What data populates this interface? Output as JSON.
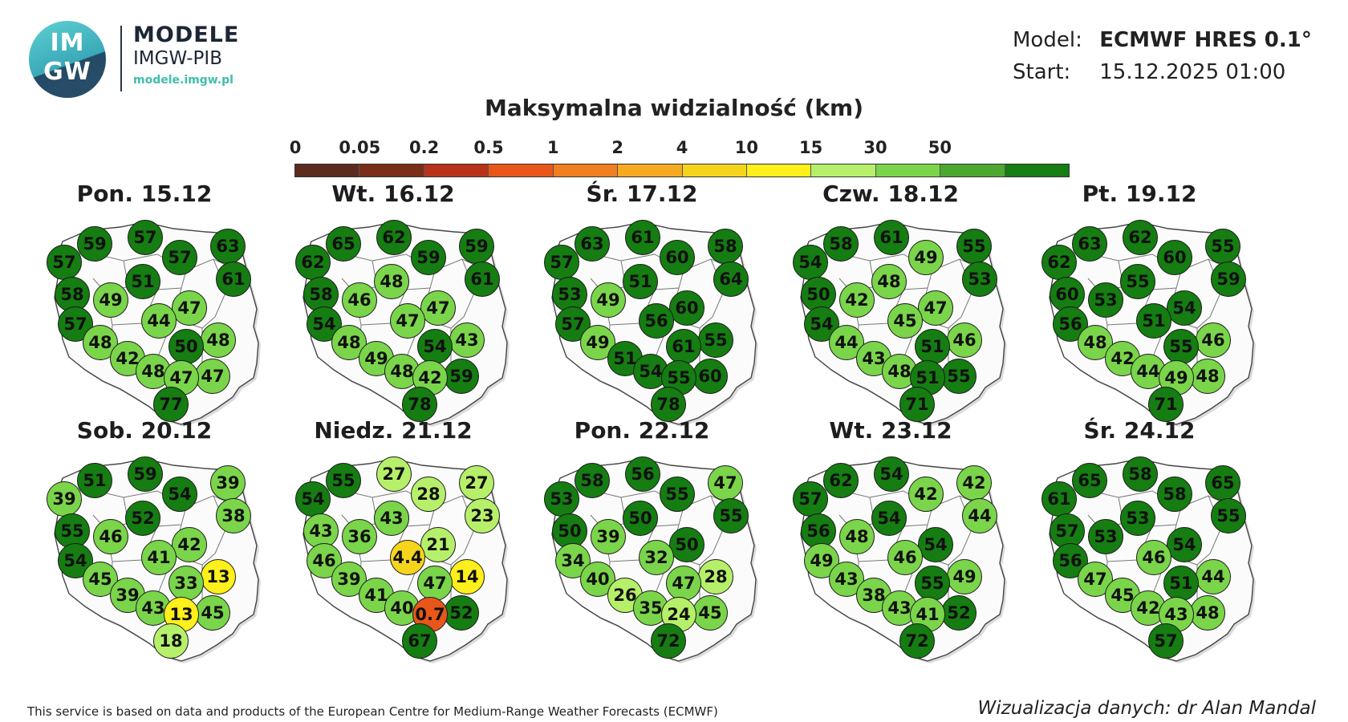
{
  "brand": {
    "logo_top": "IM",
    "logo_bottom": "GW",
    "name": "MODELE",
    "org": "IMGW-PIB",
    "url": "modele.imgw.pl"
  },
  "info": {
    "model_label": "Model:",
    "model_value": "ECMWF HRES 0.1°",
    "start_label": "Start:",
    "start_value": "15.12.2025 01:00"
  },
  "title": "Maksymalna widzialność (km)",
  "legend": {
    "ticks": [
      "0",
      "0.05",
      "0.2",
      "0.5",
      "1",
      "2",
      "4",
      "10",
      "15",
      "30",
      "50"
    ],
    "colors": [
      "#5b2b1f",
      "#7a2e18",
      "#b8321a",
      "#e8561a",
      "#f07f1f",
      "#f5aa22",
      "#f5d51c",
      "#ffef1a",
      "#b6f06a",
      "#7ad54a",
      "#4ca82e",
      "#157d12"
    ]
  },
  "footer": {
    "left": "This service is based on data and products of the European Centre for Medium-Range Weather Forecasts (ECMWF)",
    "right": "Wizualizacja danych: dr Alan Mandal"
  },
  "days": [
    {
      "label": "Pon. 15.12",
      "values": [
        "59",
        "57",
        "63",
        "57",
        "57",
        "61",
        "51",
        "58",
        "49",
        "47",
        "57",
        "44",
        "48",
        "48",
        "50",
        "42",
        "47",
        "48",
        "47",
        "77"
      ]
    },
    {
      "label": "Wt. 16.12",
      "values": [
        "65",
        "62",
        "59",
        "62",
        "59",
        "61",
        "48",
        "58",
        "46",
        "47",
        "54",
        "47",
        "48",
        "43",
        "54",
        "49",
        "59",
        "48",
        "42",
        "78"
      ]
    },
    {
      "label": "Śr. 17.12",
      "values": [
        "63",
        "61",
        "58",
        "57",
        "60",
        "64",
        "51",
        "53",
        "49",
        "60",
        "57",
        "56",
        "49",
        "55",
        "61",
        "51",
        "60",
        "54",
        "55",
        "78"
      ]
    },
    {
      "label": "Czw. 18.12",
      "values": [
        "58",
        "61",
        "55",
        "54",
        "49",
        "53",
        "48",
        "50",
        "42",
        "47",
        "54",
        "45",
        "44",
        "46",
        "51",
        "43",
        "55",
        "48",
        "51",
        "71"
      ]
    },
    {
      "label": "Pt. 19.12",
      "values": [
        "63",
        "62",
        "55",
        "62",
        "60",
        "59",
        "55",
        "60",
        "53",
        "54",
        "56",
        "51",
        "48",
        "46",
        "55",
        "42",
        "48",
        "44",
        "49",
        "71"
      ]
    },
    {
      "label": "Sob. 20.12",
      "values": [
        "51",
        "59",
        "39",
        "39",
        "54",
        "38",
        "52",
        "55",
        "46",
        "42",
        "54",
        "41",
        "45",
        "13",
        "33",
        "39",
        "45",
        "43",
        "13",
        "18"
      ]
    },
    {
      "label": "Niedz. 21.12",
      "values": [
        "55",
        "27",
        "27",
        "54",
        "28",
        "23",
        "43",
        "43",
        "36",
        "21",
        "46",
        "4.4",
        "39",
        "14",
        "47",
        "41",
        "52",
        "40",
        "0.7",
        "67"
      ]
    },
    {
      "label": "Pon. 22.12",
      "values": [
        "58",
        "56",
        "47",
        "53",
        "55",
        "55",
        "50",
        "50",
        "39",
        "50",
        "34",
        "32",
        "40",
        "28",
        "47",
        "26",
        "45",
        "35",
        "24",
        "72"
      ]
    },
    {
      "label": "Wt. 23.12",
      "values": [
        "62",
        "54",
        "42",
        "57",
        "42",
        "44",
        "54",
        "56",
        "48",
        "54",
        "49",
        "46",
        "43",
        "49",
        "55",
        "38",
        "52",
        "43",
        "41",
        "72"
      ]
    },
    {
      "label": "Śr. 24.12",
      "values": [
        "65",
        "58",
        "65",
        "61",
        "58",
        "55",
        "53",
        "57",
        "53",
        "54",
        "56",
        "46",
        "47",
        "44",
        "51",
        "45",
        "48",
        "42",
        "43",
        "57"
      ]
    }
  ]
}
